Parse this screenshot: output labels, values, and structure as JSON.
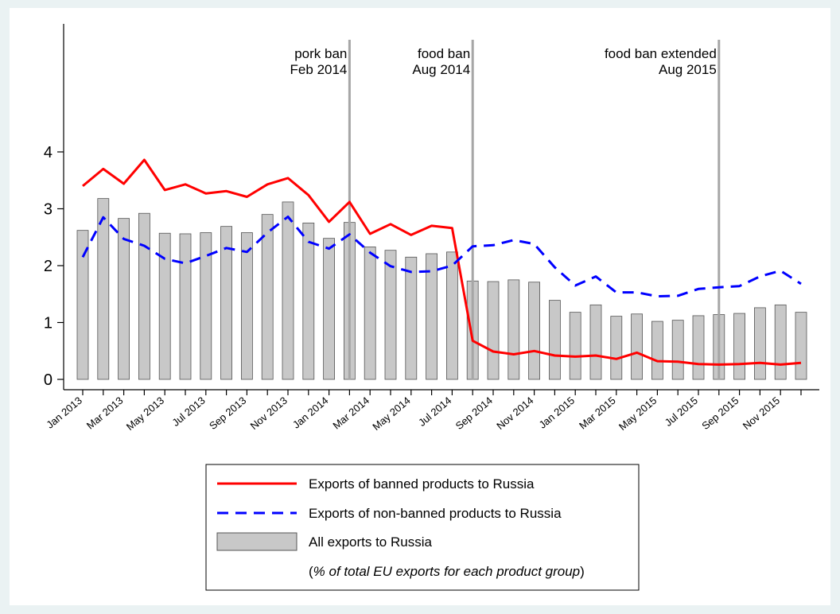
{
  "chart_data": {
    "type": "bar",
    "title": "",
    "xlabel": "",
    "ylabel": "",
    "ylim": [
      -0.25,
      6.5
    ],
    "yticks": [
      0,
      1,
      2,
      3,
      4
    ],
    "grid": false,
    "legend_placement": "bottom",
    "x_tick_labels": [
      "Jan 2013",
      "Mar 2013",
      "May 2013",
      "Jul 2013",
      "Sep 2013",
      "Nov 2013",
      "Jan 2014",
      "Mar 2014",
      "May 2014",
      "Jul 2014",
      "Sep 2014",
      "Nov 2014",
      "Jan 2015",
      "Mar 2015",
      "May 2015",
      "Jul 2015",
      "Sep 2015",
      "Nov 2015"
    ],
    "x": [
      "Jan 2013",
      "Feb 2013",
      "Mar 2013",
      "Apr 2013",
      "May 2013",
      "Jun 2013",
      "Jul 2013",
      "Aug 2013",
      "Sep 2013",
      "Oct 2013",
      "Nov 2013",
      "Dec 2013",
      "Jan 2014",
      "Feb 2014",
      "Mar 2014",
      "Apr 2014",
      "May 2014",
      "Jun 2014",
      "Jul 2014",
      "Aug 2014",
      "Sep 2014",
      "Oct 2014",
      "Nov 2014",
      "Dec 2014",
      "Jan 2015",
      "Feb 2015",
      "Mar 2015",
      "Apr 2015",
      "May 2015",
      "Jun 2015",
      "Jul 2015",
      "Aug 2015",
      "Sep 2015",
      "Oct 2015",
      "Nov 2015",
      "Dec 2015"
    ],
    "series": [
      {
        "name": "Exports of banned products to Russia",
        "kind": "line",
        "color": "#ff0000",
        "style": "solid",
        "values": [
          3.4,
          3.7,
          3.44,
          3.86,
          3.33,
          3.43,
          3.27,
          3.31,
          3.21,
          3.43,
          3.54,
          3.24,
          2.77,
          3.12,
          2.56,
          2.73,
          2.54,
          2.7,
          2.66,
          0.68,
          0.49,
          0.44,
          0.5,
          0.42,
          0.4,
          0.42,
          0.36,
          0.47,
          0.32,
          0.31,
          0.27,
          0.26,
          0.27,
          0.29,
          0.26,
          0.29
        ]
      },
      {
        "name": "Exports of non-banned products to Russia",
        "kind": "line",
        "color": "#0000ff",
        "style": "dashed",
        "values": [
          2.15,
          2.85,
          2.47,
          2.35,
          2.12,
          2.04,
          2.17,
          2.31,
          2.24,
          2.58,
          2.86,
          2.42,
          2.3,
          2.55,
          2.23,
          1.99,
          1.89,
          1.9,
          2.0,
          2.34,
          2.36,
          2.45,
          2.38,
          1.97,
          1.65,
          1.81,
          1.53,
          1.53,
          1.46,
          1.47,
          1.59,
          1.62,
          1.64,
          1.81,
          1.91,
          1.68
        ]
      },
      {
        "name": "All exports to Russia",
        "kind": "bar",
        "color": "#c8c8c8",
        "values": [
          2.62,
          3.18,
          2.83,
          2.92,
          2.57,
          2.56,
          2.58,
          2.69,
          2.58,
          2.9,
          3.12,
          2.75,
          2.48,
          2.76,
          2.33,
          2.27,
          2.15,
          2.21,
          2.24,
          1.73,
          1.72,
          1.75,
          1.71,
          1.39,
          1.18,
          1.31,
          1.11,
          1.15,
          1.02,
          1.04,
          1.12,
          1.14,
          1.16,
          1.26,
          1.31,
          1.18
        ]
      }
    ],
    "legend_note_prefix": "(",
    "legend_note": "% of total EU exports for each product group",
    "legend_note_suffix": ")",
    "annotations": [
      {
        "at": "Feb 2014",
        "lines": [
          "pork ban",
          "Feb 2014"
        ]
      },
      {
        "at": "Aug 2014",
        "lines": [
          "food ban",
          "Aug 2014"
        ]
      },
      {
        "at": "Aug 2015",
        "lines": [
          "food ban extended",
          "Aug 2015"
        ]
      }
    ],
    "colors": {
      "background": "#eaf2f3",
      "plot": "#ffffff",
      "bar_stroke": "#555555",
      "vline": "#a6a6a6"
    }
  }
}
